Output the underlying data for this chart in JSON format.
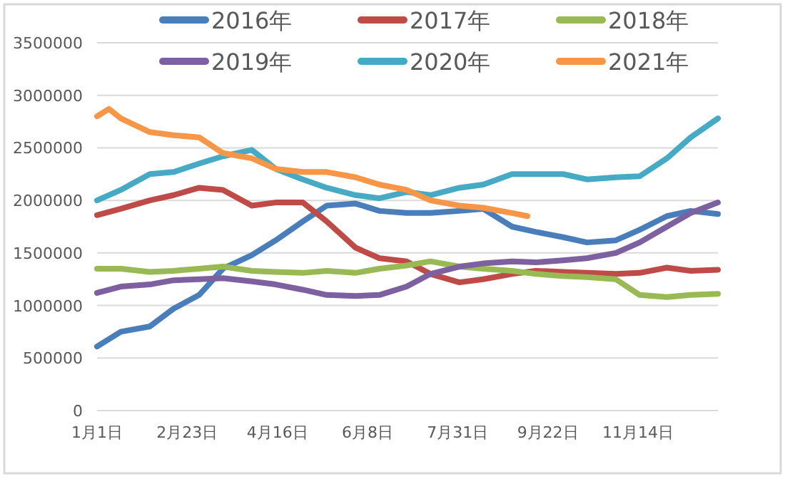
{
  "chart_data": {
    "type": "line",
    "xlim": [
      "--01-01",
      "--12-31"
    ],
    "xticks": [
      {
        "value": "--01-01",
        "label": "1月1日"
      },
      {
        "value": "--02-23",
        "label": "2月23日"
      },
      {
        "value": "--04-16",
        "label": "4月16日"
      },
      {
        "value": "--06-08",
        "label": "6月8日"
      },
      {
        "value": "--07-31",
        "label": "7月31日"
      },
      {
        "value": "--09-22",
        "label": "9月22日"
      },
      {
        "value": "--11-14",
        "label": "11月14日"
      }
    ],
    "ylim": [
      0,
      3500000
    ],
    "yticks": [
      0,
      500000,
      1000000,
      1500000,
      2000000,
      2500000,
      3000000,
      3500000
    ],
    "grid": "y",
    "legend": "top",
    "marker": "none",
    "line_style": "solid",
    "x": [
      "--01-01",
      "--01-15",
      "--02-01",
      "--02-15",
      "--03-01",
      "--03-15",
      "--04-01",
      "--04-15",
      "--05-01",
      "--05-15",
      "--06-01",
      "--06-15",
      "--07-01",
      "--07-15",
      "--08-01",
      "--08-15",
      "--09-01",
      "--09-15",
      "--10-01",
      "--10-15",
      "--11-01",
      "--11-15",
      "--12-01",
      "--12-15",
      "--12-31"
    ],
    "series": [
      {
        "name": "2016年",
        "color": "#4a7ebb",
        "values": [
          610000,
          750000,
          800000,
          970000,
          1100000,
          1350000,
          1480000,
          1620000,
          1800000,
          1950000,
          1970000,
          1900000,
          1880000,
          1880000,
          1900000,
          1920000,
          1750000,
          1700000,
          1650000,
          1600000,
          1620000,
          1720000,
          1850000,
          1900000,
          1870000
        ]
      },
      {
        "name": "2017年",
        "color": "#be4b48",
        "values": [
          1860000,
          1920000,
          2000000,
          2050000,
          2120000,
          2100000,
          1950000,
          1980000,
          1980000,
          1800000,
          1550000,
          1450000,
          1420000,
          1300000,
          1220000,
          1250000,
          1300000,
          1330000,
          1320000,
          1310000,
          1300000,
          1310000,
          1360000,
          1330000,
          1340000
        ]
      },
      {
        "name": "2018年",
        "color": "#98b954",
        "values": [
          1350000,
          1350000,
          1320000,
          1330000,
          1350000,
          1370000,
          1330000,
          1320000,
          1310000,
          1330000,
          1310000,
          1350000,
          1380000,
          1420000,
          1370000,
          1350000,
          1330000,
          1300000,
          1280000,
          1270000,
          1250000,
          1100000,
          1080000,
          1100000,
          1110000
        ]
      },
      {
        "name": "2019年",
        "color": "#7d60a0",
        "values": [
          1120000,
          1180000,
          1200000,
          1240000,
          1250000,
          1260000,
          1230000,
          1200000,
          1150000,
          1100000,
          1090000,
          1100000,
          1180000,
          1300000,
          1370000,
          1400000,
          1420000,
          1410000,
          1430000,
          1450000,
          1500000,
          1600000,
          1750000,
          1880000,
          1980000
        ]
      },
      {
        "name": "2020年",
        "color": "#46aac5",
        "values": [
          2000000,
          2100000,
          2250000,
          2270000,
          2350000,
          2420000,
          2480000,
          2300000,
          2200000,
          2120000,
          2050000,
          2020000,
          2080000,
          2050000,
          2120000,
          2150000,
          2250000,
          2250000,
          2250000,
          2200000,
          2220000,
          2230000,
          2400000,
          2600000,
          2780000
        ]
      },
      {
        "name": "2021年",
        "color": "#f79646",
        "x": [
          "--01-01",
          "--01-08",
          "--01-15",
          "--02-01",
          "--02-15",
          "--03-01",
          "--03-15",
          "--04-01",
          "--04-15",
          "--05-01",
          "--05-15",
          "--06-01",
          "--06-15",
          "--07-01",
          "--07-15",
          "--08-01",
          "--08-15",
          "--09-01",
          "--09-10"
        ],
        "values": [
          2800000,
          2870000,
          2780000,
          2650000,
          2620000,
          2600000,
          2450000,
          2400000,
          2300000,
          2270000,
          2270000,
          2220000,
          2150000,
          2100000,
          2000000,
          1950000,
          1930000,
          1880000,
          1850000
        ]
      }
    ]
  }
}
